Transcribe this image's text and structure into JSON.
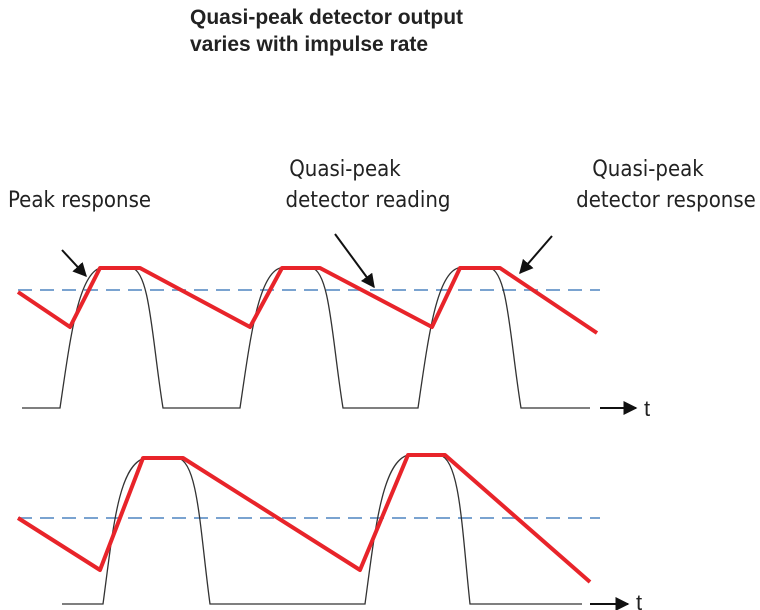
{
  "title": [
    "Quasi-peak detector output",
    "varies with impulse rate"
  ],
  "labels": [
    {
      "lines": [
        "Peak response"
      ]
    },
    {
      "lines": [
        "Quasi-peak",
        "detector reading"
      ]
    },
    {
      "lines": [
        "Quasi-peak",
        "detector response"
      ]
    }
  ],
  "axes": [
    {
      "label": "t"
    },
    {
      "label": "t"
    }
  ]
}
